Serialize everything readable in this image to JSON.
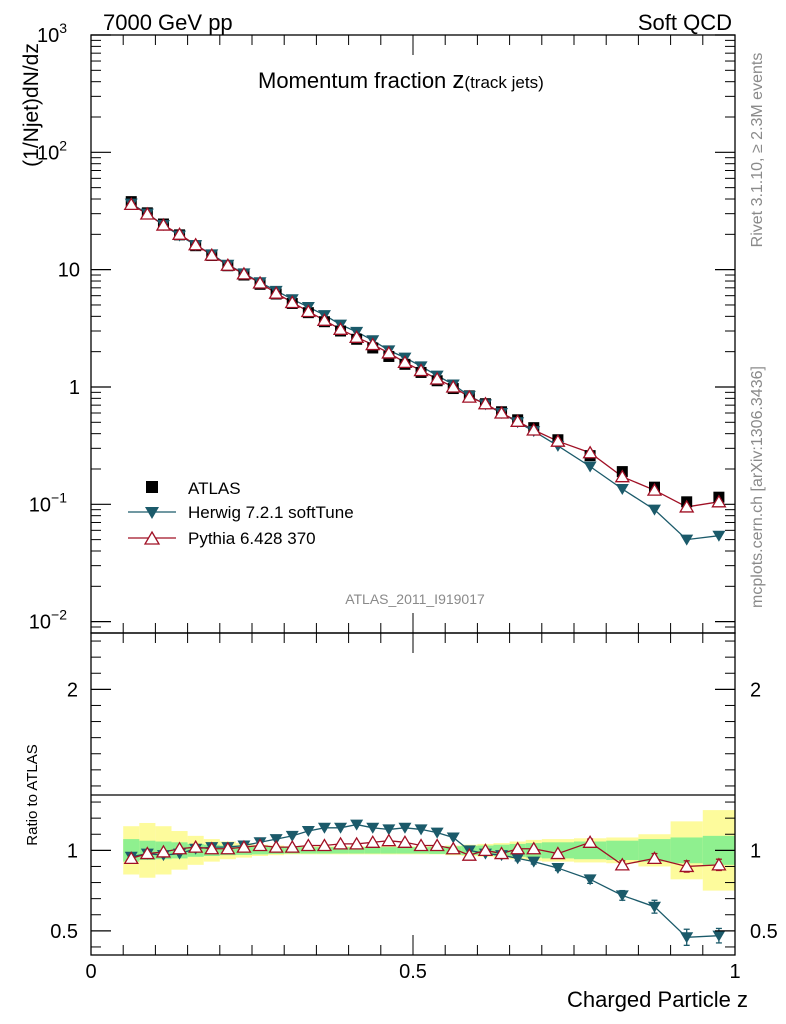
{
  "header": {
    "left": "7000 GeV pp",
    "right": "Soft QCD"
  },
  "side_labels": {
    "upper": "Rivet 3.1.10, ≥ 2.3M events",
    "lower": "mcplots.cern.ch [arXiv:1306.3436]"
  },
  "chart_data": [
    {
      "type": "scatter",
      "panel": "main",
      "title_main": "Momentum fraction ",
      "title_var": "z",
      "title_sub": "(track jets)",
      "ylabel": "(1/Njet)dN/dz",
      "yscale": "log",
      "ylim": [
        0.008,
        1000
      ],
      "xlim": [
        0,
        1
      ],
      "yticks": [
        {
          "value": 1000,
          "base": "10",
          "exp": "3"
        },
        {
          "value": 100,
          "base": "10",
          "exp": "2"
        },
        {
          "value": 10,
          "base": "10",
          "exp": ""
        },
        {
          "value": 1,
          "base": "1",
          "exp": ""
        },
        {
          "value": 0.1,
          "base": "10",
          "exp": "−1"
        },
        {
          "value": 0.01,
          "base": "10",
          "exp": "−2"
        }
      ],
      "watermark": "ATLAS_2011_I919017",
      "legend_position": "bottom-left",
      "x": [
        0.0625,
        0.0875,
        0.1125,
        0.1375,
        0.1625,
        0.1875,
        0.2125,
        0.2375,
        0.2625,
        0.2875,
        0.3125,
        0.3375,
        0.3625,
        0.3875,
        0.4125,
        0.4375,
        0.4625,
        0.4875,
        0.5125,
        0.5375,
        0.5625,
        0.5875,
        0.6125,
        0.6375,
        0.6625,
        0.6875,
        0.725,
        0.775,
        0.825,
        0.875,
        0.925,
        0.975
      ],
      "series": [
        {
          "name": "ATLAS",
          "marker": "square",
          "color": "#000000",
          "values": [
            38,
            30.5,
            24.5,
            19.8,
            16,
            13.2,
            10.8,
            9.0,
            7.5,
            6.2,
            5.15,
            4.3,
            3.6,
            3.0,
            2.55,
            2.15,
            1.82,
            1.56,
            1.33,
            1.13,
            0.97,
            0.84,
            0.72,
            0.615,
            0.525,
            0.45,
            0.355,
            0.26,
            0.19,
            0.14,
            0.105,
            0.115
          ]
        },
        {
          "name": "Herwig 7.2.1 softTune",
          "marker": "triangle-down",
          "color": "#1b5a6a",
          "values": [
            36.5,
            30.0,
            24.0,
            19.5,
            16.2,
            13.5,
            11.0,
            9.3,
            7.8,
            6.6,
            5.6,
            4.8,
            4.1,
            3.4,
            2.95,
            2.5,
            2.05,
            1.78,
            1.5,
            1.25,
            1.05,
            0.84,
            0.71,
            0.6,
            0.5,
            0.42,
            0.315,
            0.21,
            0.135,
            0.09,
            0.05,
            0.054
          ]
        },
        {
          "name": "Pythia 6.428 370",
          "marker": "triangle-up-open",
          "color": "#a01025",
          "values": [
            36,
            29.8,
            24.0,
            20.0,
            16.3,
            13.3,
            10.9,
            9.2,
            7.7,
            6.3,
            5.25,
            4.4,
            3.7,
            3.1,
            2.65,
            2.3,
            1.95,
            1.62,
            1.38,
            1.17,
            1.0,
            0.82,
            0.72,
            0.6,
            0.51,
            0.43,
            0.345,
            0.275,
            0.172,
            0.132,
            0.095,
            0.105
          ]
        }
      ]
    },
    {
      "type": "scatter",
      "panel": "ratio",
      "ylabel": "Ratio to ATLAS",
      "xlabel": "Charged Particle z",
      "ylim": [
        0.35,
        2.35
      ],
      "xlim": [
        0,
        1
      ],
      "yticks": [
        0.5,
        1,
        2
      ],
      "ytick_labels": [
        "0.5",
        "1",
        "2"
      ],
      "xticks": [
        0,
        0.5,
        1
      ],
      "xtick_labels": [
        "0",
        "0.5",
        "1"
      ],
      "x": [
        0.0625,
        0.0875,
        0.1125,
        0.1375,
        0.1625,
        0.1875,
        0.2125,
        0.2375,
        0.2625,
        0.2875,
        0.3125,
        0.3375,
        0.3625,
        0.3875,
        0.4125,
        0.4375,
        0.4625,
        0.4875,
        0.5125,
        0.5375,
        0.5625,
        0.5875,
        0.6125,
        0.6375,
        0.6625,
        0.6875,
        0.725,
        0.775,
        0.825,
        0.875,
        0.925,
        0.975
      ],
      "x_edges": [
        0.05,
        0.075,
        0.1,
        0.125,
        0.15,
        0.175,
        0.2,
        0.225,
        0.25,
        0.275,
        0.3,
        0.325,
        0.35,
        0.375,
        0.4,
        0.425,
        0.45,
        0.475,
        0.5,
        0.525,
        0.55,
        0.575,
        0.6,
        0.625,
        0.65,
        0.675,
        0.7,
        0.75,
        0.8,
        0.85,
        0.9,
        0.95,
        1.0
      ],
      "band_green": [
        0.07,
        0.06,
        0.055,
        0.05,
        0.04,
        0.035,
        0.03,
        0.028,
        0.025,
        0.022,
        0.02,
        0.02,
        0.02,
        0.02,
        0.02,
        0.02,
        0.02,
        0.02,
        0.02,
        0.022,
        0.025,
        0.028,
        0.03,
        0.035,
        0.04,
        0.045,
        0.05,
        0.055,
        0.06,
        0.07,
        0.08,
        0.09
      ],
      "band_yellow": [
        0.15,
        0.17,
        0.15,
        0.12,
        0.09,
        0.07,
        0.055,
        0.045,
        0.035,
        0.03,
        0.025,
        0.025,
        0.025,
        0.025,
        0.025,
        0.025,
        0.025,
        0.025,
        0.025,
        0.025,
        0.03,
        0.035,
        0.04,
        0.045,
        0.055,
        0.065,
        0.07,
        0.075,
        0.08,
        0.1,
        0.18,
        0.25
      ],
      "series": [
        {
          "name": "Herwig 7.2.1 softTune",
          "color": "#1b5a6a",
          "values": [
            0.96,
            0.98,
            0.97,
            0.98,
            1.01,
            1.02,
            1.02,
            1.03,
            1.05,
            1.07,
            1.09,
            1.12,
            1.14,
            1.14,
            1.16,
            1.14,
            1.13,
            1.14,
            1.13,
            1.11,
            1.08,
            1.0,
            0.98,
            0.97,
            0.95,
            0.93,
            0.89,
            0.82,
            0.72,
            0.65,
            0.46,
            0.47
          ],
          "errors": [
            0,
            0,
            0,
            0,
            0,
            0,
            0,
            0,
            0,
            0,
            0,
            0,
            0,
            0,
            0,
            0,
            0,
            0,
            0,
            0,
            0,
            0,
            0,
            0,
            0.015,
            0.015,
            0.015,
            0.025,
            0.03,
            0.04,
            0.05,
            0.045
          ]
        },
        {
          "name": "Pythia 6.428 370",
          "color": "#a01025",
          "values": [
            0.95,
            0.98,
            0.99,
            1.01,
            1.02,
            1.01,
            1.01,
            1.02,
            1.03,
            1.02,
            1.02,
            1.03,
            1.03,
            1.04,
            1.04,
            1.05,
            1.06,
            1.05,
            1.03,
            1.03,
            1.01,
            0.97,
            1.0,
            0.98,
            1.01,
            1.01,
            0.98,
            1.05,
            0.91,
            0.95,
            0.9,
            0.91
          ],
          "errors": [
            0,
            0,
            0,
            0,
            0,
            0,
            0,
            0,
            0,
            0,
            0,
            0,
            0,
            0,
            0,
            0,
            0,
            0,
            0,
            0,
            0,
            0,
            0,
            0,
            0.01,
            0.01,
            0.01,
            0.02,
            0.025,
            0.03,
            0.035,
            0.035
          ]
        }
      ]
    }
  ]
}
